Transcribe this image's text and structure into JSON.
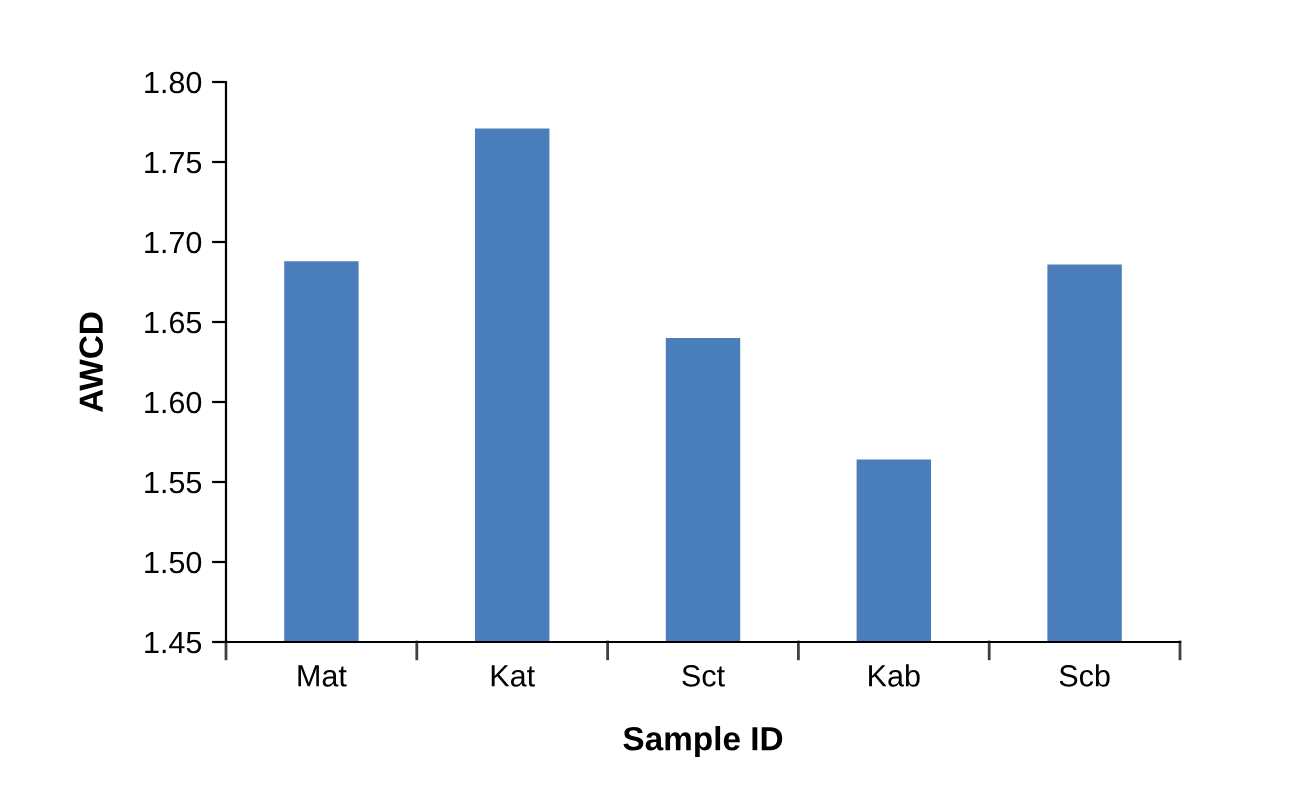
{
  "chart_data": {
    "type": "bar",
    "xlabel": "Sample ID",
    "ylabel": "AWCD",
    "categories": [
      "Mat",
      "Kat",
      "Sct",
      "Kab",
      "Scb"
    ],
    "values": [
      1.688,
      1.771,
      1.64,
      1.564,
      1.686
    ],
    "color": "#4a7ebb",
    "ylim": [
      1.45,
      1.8
    ],
    "yticks": [
      {
        "value": 1.45,
        "label": "1.45"
      },
      {
        "value": 1.5,
        "label": "1.50"
      },
      {
        "value": 1.55,
        "label": "1.55"
      },
      {
        "value": 1.6,
        "label": "1.60"
      },
      {
        "value": 1.65,
        "label": "1.65"
      },
      {
        "value": 1.7,
        "label": "1.70"
      },
      {
        "value": 1.75,
        "label": "1.75"
      },
      {
        "value": 1.8,
        "label": "1.80"
      }
    ],
    "grid": false,
    "legend": false
  }
}
